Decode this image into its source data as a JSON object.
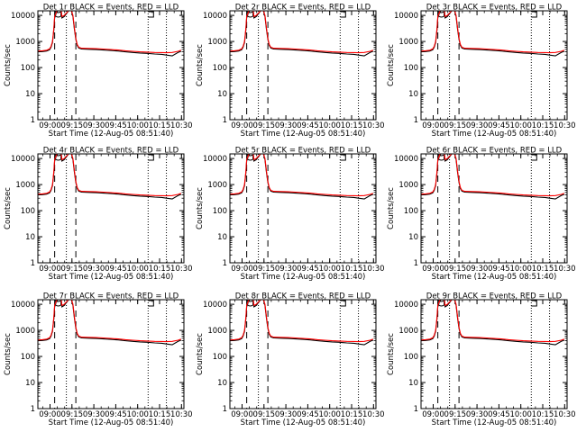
{
  "chart_data": {
    "type": "line",
    "grid": "3x3",
    "xlabel": "Start Time (12-Aug-05 08:51:40)",
    "ylabel": "Counts/sec",
    "x_ticks": [
      "09:00",
      "09:15",
      "09:30",
      "09:45",
      "10:00",
      "10:15",
      "10:30"
    ],
    "x_tick_minutes": [
      8.33,
      23.33,
      38.33,
      53.33,
      68.33,
      83.33,
      98.33
    ],
    "x_range_minutes": [
      0,
      100
    ],
    "ylim": [
      1,
      15000
    ],
    "yscale": "log",
    "y_ticks": [
      "1",
      "10",
      "100",
      "1000",
      "10000"
    ],
    "colors": {
      "events": "#000000",
      "lld": "#ff0000",
      "axes": "#000000"
    },
    "markers": {
      "dashed_minutes": [
        11.5,
        26.0
      ],
      "dotted_minutes": [
        19.5,
        75.5,
        88.0
      ]
    },
    "panels": [
      {
        "title": "Det 1r BLACK = Events, RED = LLD"
      },
      {
        "title": "Det 2r BLACK = Events, RED = LLD"
      },
      {
        "title": "Det 3r BLACK = Events, RED = LLD"
      },
      {
        "title": "Det 4r BLACK = Events, RED = LLD"
      },
      {
        "title": "Det 5r BLACK = Events, RED = LLD"
      },
      {
        "title": "Det 6r BLACK = Events, RED = LLD"
      },
      {
        "title": "Det 7r BLACK = Events, RED = LLD"
      },
      {
        "title": "Det 8r BLACK = Events, RED = LLD"
      },
      {
        "title": "Det 9r BLACK = Events, RED = LLD"
      }
    ],
    "series": [
      {
        "name": "Events",
        "x": [
          0,
          3,
          6,
          8,
          9,
          10,
          10.5,
          11,
          11.5,
          13,
          16,
          16.5,
          18,
          21,
          23,
          24,
          25,
          26,
          27,
          28,
          30,
          35,
          40,
          45,
          50,
          55,
          60,
          65,
          70,
          75,
          80,
          85,
          88,
          92,
          96,
          98
        ],
        "y": [
          400,
          410,
          430,
          480,
          600,
          900,
          1600,
          3000,
          8000,
          15000,
          15000,
          8000,
          9000,
          15000,
          15000,
          9000,
          3000,
          1200,
          700,
          560,
          510,
          500,
          490,
          470,
          450,
          430,
          400,
          380,
          360,
          350,
          330,
          320,
          300,
          280,
          380,
          420
        ]
      },
      {
        "name": "LLD",
        "x": [
          0,
          3,
          6,
          8,
          9,
          10,
          10.5,
          11,
          11.5,
          13,
          16,
          16.5,
          18,
          21,
          23,
          24,
          25,
          26,
          27,
          28,
          30,
          35,
          40,
          45,
          50,
          55,
          60,
          65,
          70,
          75,
          80,
          85,
          88,
          92,
          96,
          98
        ],
        "y": [
          430,
          440,
          460,
          520,
          650,
          1000,
          1800,
          3500,
          9000,
          15000,
          15000,
          9000,
          10000,
          15000,
          15000,
          10000,
          3400,
          1300,
          760,
          600,
          550,
          540,
          530,
          510,
          490,
          470,
          440,
          420,
          400,
          390,
          380,
          375,
          370,
          380,
          420,
          460
        ]
      }
    ]
  }
}
